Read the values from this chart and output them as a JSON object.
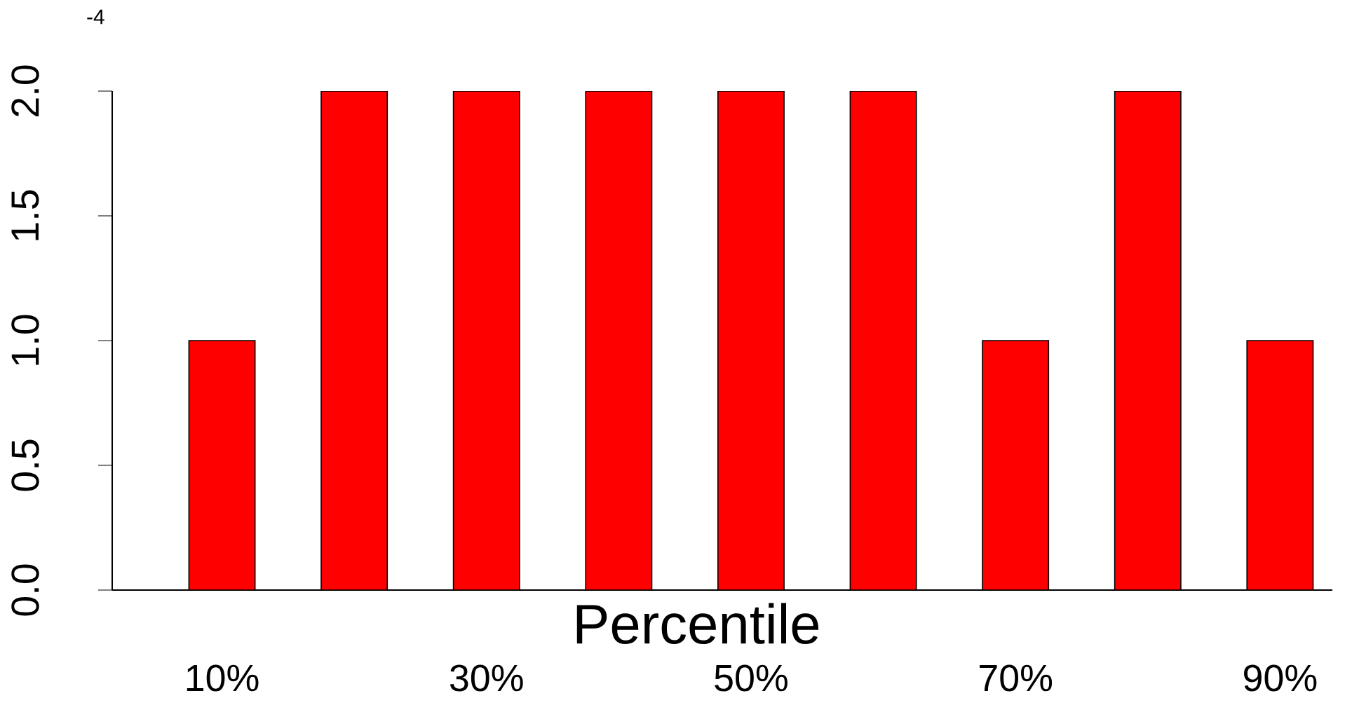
{
  "chart_data": {
    "type": "bar",
    "xlabel": "Percentile",
    "categories": [
      "10%",
      null,
      "30%",
      null,
      "50%",
      null,
      "70%",
      null,
      "90%"
    ],
    "values": [
      1,
      2,
      2,
      2,
      2,
      2,
      1,
      2,
      1
    ],
    "color": "#ff0000",
    "ylim": [
      0,
      2
    ],
    "yticks": [
      {
        "value": 0,
        "label": "0.0"
      },
      {
        "value": 0.5,
        "label": "0.5"
      },
      {
        "value": 1,
        "label": "1.0"
      },
      {
        "value": 1.5,
        "label": "1.5"
      },
      {
        "value": 2,
        "label": "2.0"
      }
    ],
    "grid": false,
    "legend": false,
    "annotations": [
      "-4"
    ]
  }
}
